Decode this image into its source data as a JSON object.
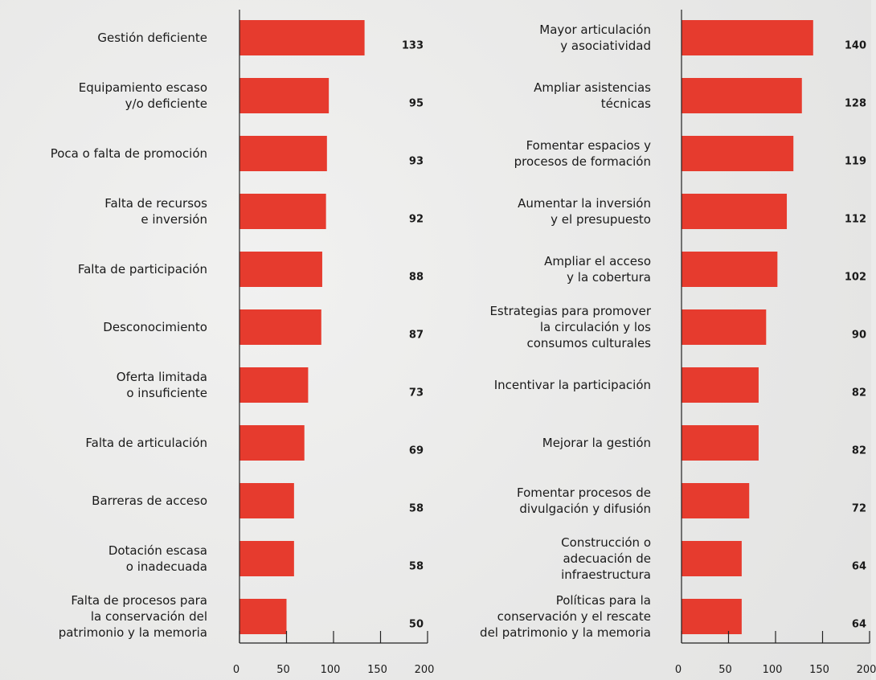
{
  "chart_data": [
    {
      "type": "bar",
      "orientation": "horizontal",
      "color": "#e63b2e",
      "categories": [
        "Gestión deficiente",
        "Equipamiento escaso\ny/o deficiente",
        "Poca o falta de promoción",
        "Falta de recursos\ne inversión",
        "Falta de participación",
        "Desconocimiento",
        "Oferta limitada\no insuficiente",
        "Falta de articulación",
        "Barreras de acceso",
        "Dotación escasa\no inadecuada",
        "Falta de procesos para\nla conservación del\npatrimonio y la memoria"
      ],
      "values": [
        133,
        95,
        93,
        92,
        88,
        87,
        73,
        69,
        58,
        58,
        50
      ],
      "xlim": [
        0,
        200
      ],
      "xticks": [
        0,
        50,
        100,
        150,
        200
      ]
    },
    {
      "type": "bar",
      "orientation": "horizontal",
      "color": "#e63b2e",
      "categories": [
        "Mayor articulación\ny asociatividad",
        "Ampliar asistencias\ntécnicas",
        "Fomentar espacios y\nprocesos de formación",
        "Aumentar la inversión\ny el presupuesto",
        "Ampliar el acceso\ny la cobertura",
        "Estrategias para promover\nla circulación y los\nconsumos culturales",
        "Incentivar la participación",
        "Mejorar la gestión",
        "Fomentar procesos de\ndivulgación y difusión",
        "Construcción o\nadecuación de\ninfraestructura",
        "Políticas para la\nconservación y el rescate\ndel patrimonio y la memoria"
      ],
      "values": [
        140,
        128,
        119,
        112,
        102,
        90,
        82,
        82,
        72,
        64,
        64
      ],
      "xlim": [
        0,
        200
      ],
      "xticks": [
        0,
        50,
        100,
        150,
        200
      ]
    }
  ]
}
